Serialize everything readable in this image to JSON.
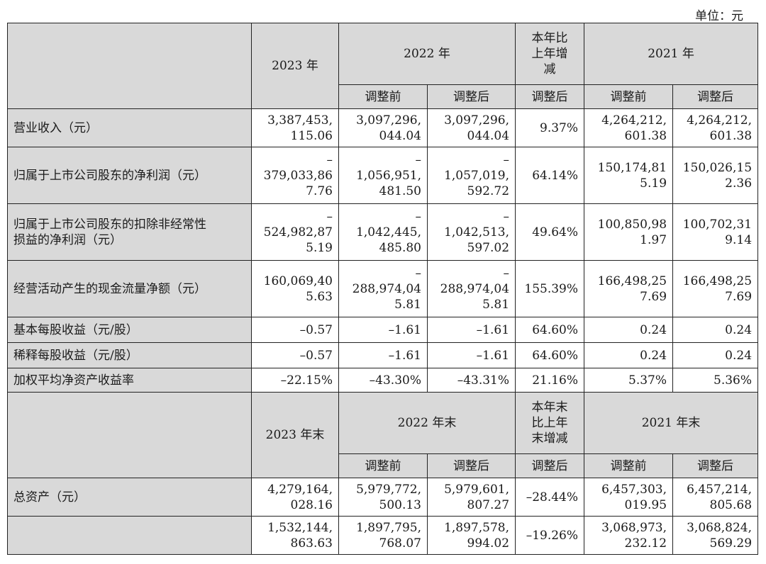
{
  "unit_label": "单位：元",
  "section1": {
    "h_2023": "2023 年",
    "h_2022": "2022 年",
    "h_change": "本年比\n上年增\n减",
    "h_2021": "2021 年",
    "sub": [
      "调整前",
      "调整后",
      "调整后",
      "调整前",
      "调整后"
    ],
    "rows": [
      {
        "label": "营业收入（元）",
        "cells": [
          "3,387,453,\n115.06",
          "3,097,296,\n044.04",
          "3,097,296,\n044.04",
          "9.37%",
          "4,264,212,\n601.38",
          "4,264,212,\n601.38"
        ]
      },
      {
        "label": "归属于上市公司股东的净利润（元）",
        "cells": [
          "–\n379,033,86\n7.76",
          "–\n1,056,951,\n481.50",
          "–\n1,057,019,\n592.72",
          "64.14%",
          "150,174,81\n5.19",
          "150,026,15\n2.36"
        ]
      },
      {
        "label": "归属于上市公司股东的扣除非经常性\n损益的净利润（元）",
        "cells": [
          "–\n524,982,87\n5.19",
          "–\n1,042,445,\n485.80",
          "–\n1,042,513,\n597.02",
          "49.64%",
          "100,850,98\n1.97",
          "100,702,31\n9.14"
        ]
      },
      {
        "label": "经营活动产生的现金流量净额（元）",
        "cells": [
          "160,069,40\n5.63",
          "–\n288,974,04\n5.81",
          "–\n288,974,04\n5.81",
          "155.39%",
          "166,498,25\n7.69",
          "166,498,25\n7.69"
        ]
      },
      {
        "label": "基本每股收益（元/股）",
        "cells": [
          "–0.57",
          "–1.61",
          "–1.61",
          "64.60%",
          "0.24",
          "0.24"
        ]
      },
      {
        "label": "稀释每股收益（元/股）",
        "cells": [
          "–0.57",
          "–1.61",
          "–1.61",
          "64.60%",
          "0.24",
          "0.24"
        ]
      },
      {
        "label": "加权平均净资产收益率",
        "cells": [
          "–22.15%",
          "–43.30%",
          "–43.31%",
          "21.16%",
          "5.37%",
          "5.36%"
        ]
      }
    ]
  },
  "section2": {
    "h_2023": "2023 年末",
    "h_2022": "2022 年末",
    "h_change": "本年末\n比上年\n末增减",
    "h_2021": "2021 年末",
    "sub": [
      "调整前",
      "调整后",
      "调整后",
      "调整前",
      "调整后"
    ],
    "rows": [
      {
        "label": "总资产（元）",
        "cells": [
          "4,279,164,\n028.16",
          "5,979,772,\n500.13",
          "5,979,601,\n807.27",
          "–28.44%",
          "6,457,303,\n019.95",
          "6,457,214,\n805.68"
        ]
      },
      {
        "label": "",
        "cells": [
          "1,532,144,\n863.63",
          "1,897,795,\n768.07",
          "1,897,578,\n994.02",
          "–19.26%",
          "3,068,973,\n232.12",
          "3,068,824,\n569.29"
        ]
      }
    ]
  }
}
